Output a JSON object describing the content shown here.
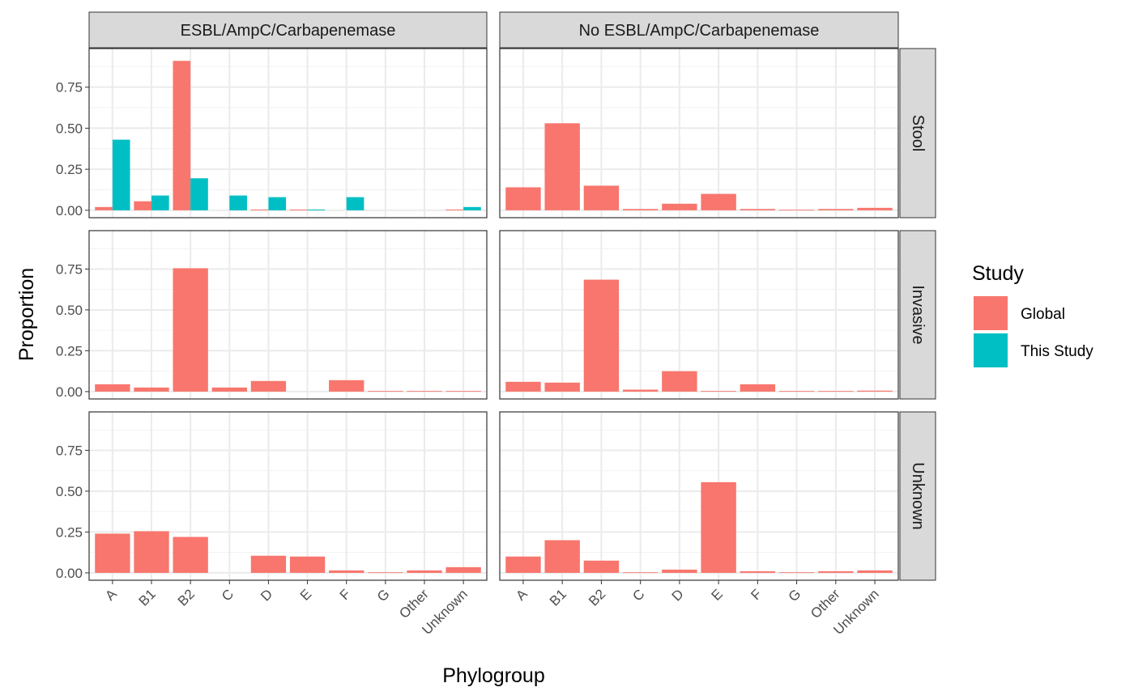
{
  "chart_data": {
    "type": "bar",
    "layout": "facet_grid",
    "xlabel": "Phylogroup",
    "ylabel": "Proportion",
    "ylim": [
      0,
      0.94
    ],
    "yticks": [
      0,
      0.25,
      0.5,
      0.75
    ],
    "ytick_labels": [
      "0.00",
      "0.25",
      "0.50",
      "0.75"
    ],
    "grid": true,
    "categories": [
      "A",
      "B1",
      "B2",
      "C",
      "D",
      "E",
      "F",
      "G",
      "Other",
      "Unknown"
    ],
    "col_facets": [
      "ESBL/AmpC/Carbapenemase",
      "No ESBL/AmpC/Carbapenemase"
    ],
    "row_facets": [
      "Stool",
      "Invasive",
      "Unknown"
    ],
    "legend": {
      "title": "Study",
      "position": "right",
      "entries": [
        {
          "name": "Global",
          "color": "#F8766D"
        },
        {
          "name": "This Study",
          "color": "#00BFC4"
        }
      ]
    },
    "panels": [
      {
        "col": 0,
        "row": 0,
        "series": [
          {
            "name": "Global",
            "values": [
              0.02,
              0.055,
              0.91,
              null,
              0.005,
              0.005,
              null,
              null,
              null,
              0.005
            ]
          },
          {
            "name": "This Study",
            "values": [
              0.43,
              0.09,
              0.195,
              0.09,
              0.08,
              0.005,
              0.08,
              null,
              null,
              0.02
            ]
          }
        ]
      },
      {
        "col": 1,
        "row": 0,
        "series": [
          {
            "name": "Global",
            "values": [
              0.14,
              0.53,
              0.15,
              0.008,
              0.04,
              0.1,
              0.008,
              0.004,
              0.008,
              0.015
            ]
          }
        ]
      },
      {
        "col": 0,
        "row": 1,
        "series": [
          {
            "name": "Global",
            "values": [
              0.045,
              0.025,
              0.755,
              0.025,
              0.065,
              null,
              0.07,
              0.004,
              0.004,
              0.004
            ]
          }
        ]
      },
      {
        "col": 1,
        "row": 1,
        "series": [
          {
            "name": "Global",
            "values": [
              0.06,
              0.055,
              0.685,
              0.012,
              0.125,
              0.004,
              0.045,
              0.002,
              0.002,
              0.006
            ]
          }
        ]
      },
      {
        "col": 0,
        "row": 2,
        "series": [
          {
            "name": "Global",
            "values": [
              0.24,
              0.255,
              0.22,
              null,
              0.105,
              0.1,
              0.015,
              0.004,
              0.015,
              0.035
            ]
          }
        ]
      },
      {
        "col": 1,
        "row": 2,
        "series": [
          {
            "name": "Global",
            "values": [
              0.1,
              0.2,
              0.075,
              0.004,
              0.02,
              0.555,
              0.01,
              0.004,
              0.01,
              0.015
            ]
          }
        ]
      }
    ]
  }
}
